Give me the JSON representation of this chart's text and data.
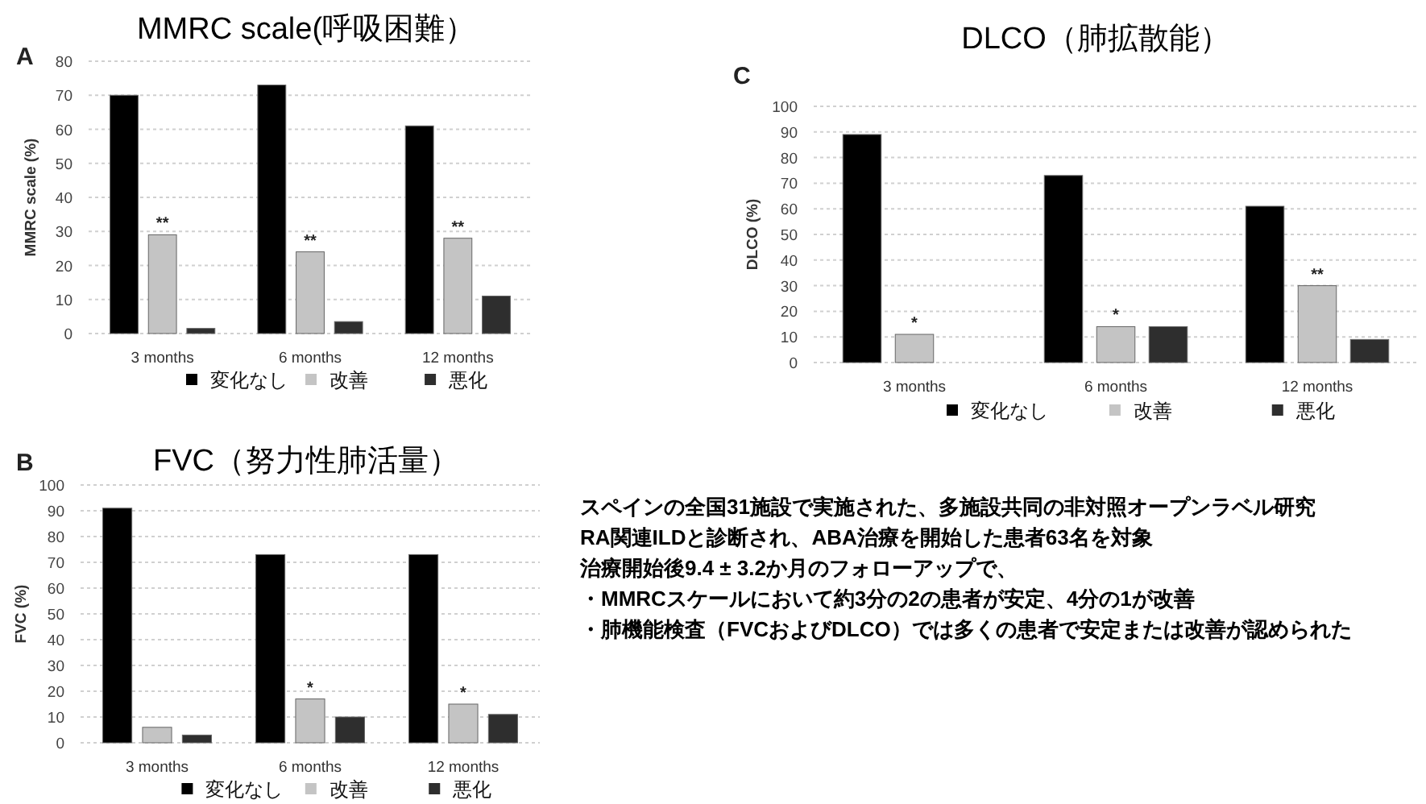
{
  "chart_data": [
    {
      "type": "bar",
      "title": "MMRC scale(呼吸困難）",
      "ylabel": "MMRC scale (%)",
      "categories": [
        "3 months",
        "6 months",
        "12 months"
      ],
      "series": [
        {
          "name": "変化なし",
          "color": "#000000",
          "values": [
            70,
            73,
            61
          ]
        },
        {
          "name": "改善",
          "color": "#c4c4c4",
          "values": [
            29,
            24,
            28
          ]
        },
        {
          "name": "悪化",
          "color": "#2e2e2e",
          "values": [
            1.5,
            3.5,
            11
          ]
        }
      ],
      "ylim": [
        0,
        80
      ],
      "yticks": [
        0,
        10,
        20,
        30,
        40,
        50,
        60,
        70,
        80
      ],
      "grid": "y",
      "legend": "bottom",
      "annotations": [
        "A",
        {
          "text": "**",
          "x": "3 months",
          "y": 29
        },
        {
          "text": "**",
          "x": "6 months",
          "y": 24
        },
        {
          "text": "**",
          "x": "12 months",
          "y": 28
        }
      ]
    },
    {
      "type": "bar",
      "title": "DLCO（肺拡散能）",
      "ylabel": "DLCO (%)",
      "categories": [
        "3 months",
        "6 months",
        "12 months"
      ],
      "series": [
        {
          "name": "変化なし",
          "color": "#000000",
          "values": [
            89,
            73,
            61
          ]
        },
        {
          "name": "改善",
          "color": "#c4c4c4",
          "values": [
            11,
            14,
            30
          ]
        },
        {
          "name": "悪化",
          "color": "#2e2e2e",
          "values": [
            0,
            14,
            9
          ]
        }
      ],
      "ylim": [
        0,
        100
      ],
      "yticks": [
        0,
        10,
        20,
        30,
        40,
        50,
        60,
        70,
        80,
        90,
        100
      ],
      "grid": "y",
      "legend": "bottom",
      "annotations": [
        "C",
        {
          "text": "*",
          "x": "3 months",
          "y": 11
        },
        {
          "text": "*",
          "x": "6 months",
          "y": 14
        },
        {
          "text": "**",
          "x": "12 months",
          "y": 30
        }
      ]
    },
    {
      "type": "bar",
      "title": "FVC（努力性肺活量）",
      "ylabel": "FVC (%)",
      "categories": [
        "3 months",
        "6 months",
        "12 months"
      ],
      "series": [
        {
          "name": "変化なし",
          "color": "#000000",
          "values": [
            91,
            73,
            73
          ]
        },
        {
          "name": "改善",
          "color": "#c4c4c4",
          "values": [
            6,
            17,
            15
          ]
        },
        {
          "name": "悪化",
          "color": "#2e2e2e",
          "values": [
            3,
            10,
            11
          ]
        }
      ],
      "ylim": [
        0,
        100
      ],
      "yticks": [
        0,
        10,
        20,
        30,
        40,
        50,
        60,
        70,
        80,
        90,
        100
      ],
      "grid": "y",
      "legend": "bottom",
      "annotations": [
        "B",
        {
          "text": "*",
          "x": "6 months",
          "y": 17
        },
        {
          "text": "*",
          "x": "12 months",
          "y": 15
        }
      ]
    },
    {
      "type": "other",
      "annotations": [
        "スペインの全国31施設で実施された、多施設共同の非対照オープンラベル研究",
        "RA関連ILDと診断され、ABA治療を開始した患者63名を対象",
        "治療開始後9.4 ± 3.2か月のフォローアップで、",
        "・MMRCスケールにおいて約3分の2の患者が安定、4分の1が改善",
        "・肺機能検査（FVCおよびDLCO）では多くの患者で安定または改善が認められた"
      ]
    }
  ]
}
